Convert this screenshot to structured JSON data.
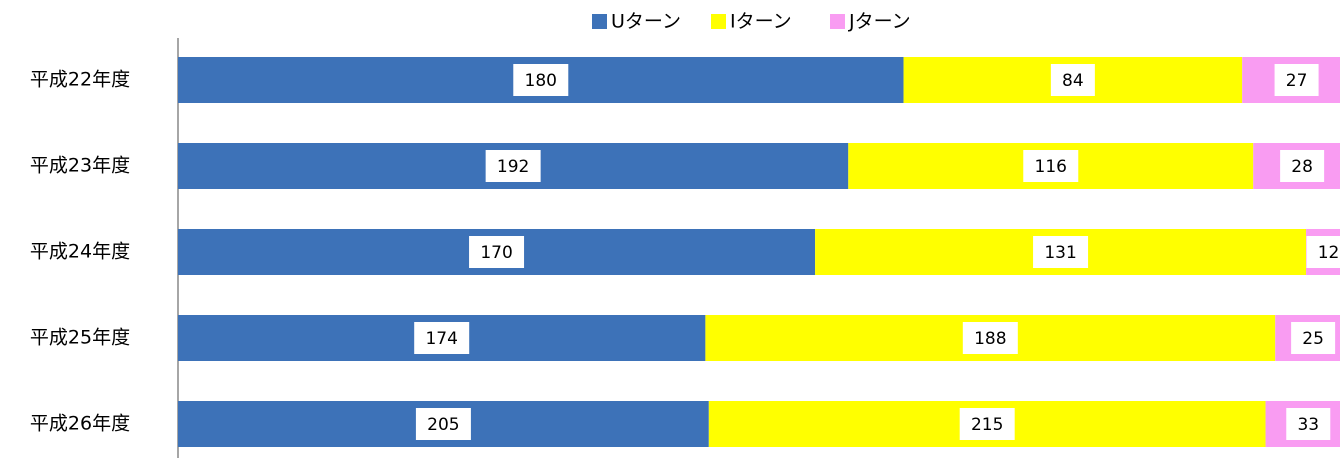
{
  "chart_data": {
    "type": "bar",
    "orientation": "horizontal",
    "stacked": "percent",
    "categories": [
      "平成22年度",
      "平成23年度",
      "平成24年度",
      "平成25年度",
      "平成26年度"
    ],
    "series": [
      {
        "name": "Uターン",
        "color": "#3d72b8",
        "values": [
          180,
          192,
          170,
          174,
          205
        ]
      },
      {
        "name": "Iターン",
        "color": "#ffff00",
        "values": [
          84,
          116,
          131,
          188,
          215
        ]
      },
      {
        "name": "Jターン",
        "color": "#f99cf2",
        "values": [
          27,
          28,
          12,
          25,
          33
        ]
      }
    ],
    "legend": "top"
  }
}
